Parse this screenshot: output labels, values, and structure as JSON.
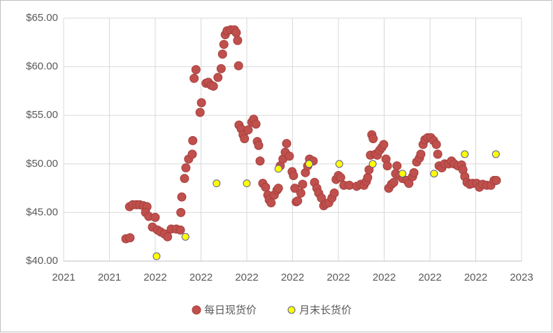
{
  "chart_data": {
    "type": "scatter",
    "xlim": [
      0,
      10
    ],
    "xticks": [
      {
        "value": 0,
        "label": "2021"
      },
      {
        "value": 1,
        "label": "2021"
      },
      {
        "value": 2,
        "label": "2022"
      },
      {
        "value": 3,
        "label": "2022"
      },
      {
        "value": 4,
        "label": "2022"
      },
      {
        "value": 5,
        "label": "2022"
      },
      {
        "value": 6,
        "label": "2022"
      },
      {
        "value": 7,
        "label": "2022"
      },
      {
        "value": 8,
        "label": "2022"
      },
      {
        "value": 9,
        "label": "2022"
      },
      {
        "value": 10,
        "label": "2023"
      }
    ],
    "ylim": [
      40,
      65
    ],
    "yticks": [
      {
        "value": 40,
        "label": "$40.00"
      },
      {
        "value": 45,
        "label": "$45.00"
      },
      {
        "value": 50,
        "label": "$50.00"
      },
      {
        "value": 55,
        "label": "$55.00"
      },
      {
        "value": 60,
        "label": "$60.00"
      },
      {
        "value": 65,
        "label": "$65.00"
      }
    ],
    "grid": true,
    "legend": "bottom",
    "series": [
      {
        "name": "每日现货价",
        "color": "#c0504d",
        "x": [
          1.36,
          1.45,
          1.44,
          1.51,
          1.59,
          1.66,
          1.74,
          1.82,
          1.79,
          1.86,
          1.94,
          2.0,
          2.05,
          2.12,
          2.2,
          2.27,
          2.35,
          2.46,
          2.55,
          2.56,
          2.58,
          2.64,
          2.67,
          2.73,
          2.81,
          2.82,
          2.85,
          2.89,
          2.98,
          3.01,
          3.11,
          3.16,
          3.22,
          3.27,
          3.37,
          3.44,
          3.47,
          3.5,
          3.53,
          3.57,
          3.65,
          3.73,
          3.77,
          3.8,
          3.82,
          3.83,
          3.88,
          3.92,
          3.95,
          4.03,
          4.11,
          4.15,
          4.2,
          4.23,
          4.26,
          4.29,
          4.35,
          4.41,
          4.46,
          4.49,
          4.53,
          4.6,
          4.66,
          4.69,
          4.73,
          4.79,
          4.84,
          4.87,
          4.93,
          4.99,
          5.02,
          5.05,
          5.08,
          5.11,
          5.18,
          5.22,
          5.28,
          5.33,
          5.37,
          5.45,
          5.48,
          5.53,
          5.57,
          5.63,
          5.68,
          5.73,
          5.79,
          5.86,
          5.91,
          5.95,
          6.0,
          6.05,
          6.12,
          6.24,
          6.4,
          6.49,
          6.56,
          6.61,
          6.64,
          6.67,
          6.7,
          6.73,
          6.76,
          6.81,
          6.85,
          6.9,
          6.95,
          6.99,
          7.04,
          7.07,
          7.1,
          7.16,
          7.21,
          7.25,
          7.28,
          7.34,
          7.4,
          7.5,
          7.54,
          7.62,
          7.65,
          7.71,
          7.77,
          7.8,
          7.85,
          7.89,
          7.95,
          8.02,
          8.08,
          8.14,
          8.17,
          8.2,
          8.26,
          8.32,
          8.41,
          8.47,
          8.53,
          8.61,
          8.69,
          8.72,
          8.76,
          8.81,
          8.87,
          8.93,
          9.02,
          9.08,
          9.15,
          9.24,
          9.33,
          9.4,
          9.45
        ],
        "values": [
          42.3,
          42.4,
          45.6,
          45.8,
          45.8,
          45.8,
          45.7,
          45.6,
          45.0,
          44.6,
          43.5,
          44.5,
          43.2,
          43.0,
          42.8,
          42.5,
          43.3,
          43.3,
          43.2,
          45.0,
          46.6,
          48.5,
          49.6,
          50.5,
          51.0,
          52.4,
          58.8,
          59.7,
          55.3,
          56.3,
          58.3,
          58.4,
          58.1,
          58.0,
          58.9,
          59.8,
          61.3,
          62.3,
          63.3,
          63.7,
          63.8,
          63.8,
          63.5,
          62.7,
          60.1,
          54.0,
          53.6,
          53.0,
          52.6,
          53.5,
          54.3,
          54.6,
          54.1,
          52.3,
          51.9,
          50.3,
          48.0,
          47.6,
          46.8,
          46.3,
          46.0,
          46.8,
          47.3,
          47.5,
          49.8,
          50.5,
          51.2,
          52.1,
          50.8,
          49.2,
          48.8,
          47.5,
          46.1,
          46.2,
          47.0,
          47.9,
          49.1,
          49.8,
          50.5,
          50.3,
          48.1,
          47.5,
          47.0,
          46.5,
          45.7,
          45.9,
          46.0,
          46.5,
          47.0,
          48.4,
          48.8,
          48.6,
          47.8,
          47.8,
          47.7,
          47.9,
          47.8,
          48.2,
          48.6,
          49.4,
          50.9,
          53.0,
          52.6,
          51.0,
          50.9,
          51.4,
          51.7,
          52.0,
          50.5,
          49.8,
          47.5,
          47.9,
          48.1,
          49.0,
          49.8,
          48.8,
          48.5,
          48.3,
          48.0,
          48.7,
          49.1,
          50.2,
          50.6,
          51.0,
          52.0,
          52.5,
          52.7,
          52.7,
          52.4,
          52.0,
          51.0,
          49.8,
          49.6,
          50.0,
          50.0,
          50.3,
          50.0,
          49.8,
          49.9,
          49.4,
          48.7,
          48.1,
          47.9,
          48.0,
          48.0,
          47.6,
          47.9,
          47.8,
          47.8,
          48.3,
          48.3
        ]
      },
      {
        "name": "月末长货价",
        "color": "#ffff00",
        "x": [
          2.03,
          2.66,
          3.34,
          4.0,
          4.69,
          5.36,
          6.02,
          6.75,
          7.4,
          8.09,
          8.76,
          9.44
        ],
        "values": [
          40.5,
          42.5,
          48.0,
          48.0,
          49.5,
          50.0,
          50.0,
          50.0,
          49.0,
          49.0,
          51.0,
          51.0
        ]
      }
    ]
  }
}
